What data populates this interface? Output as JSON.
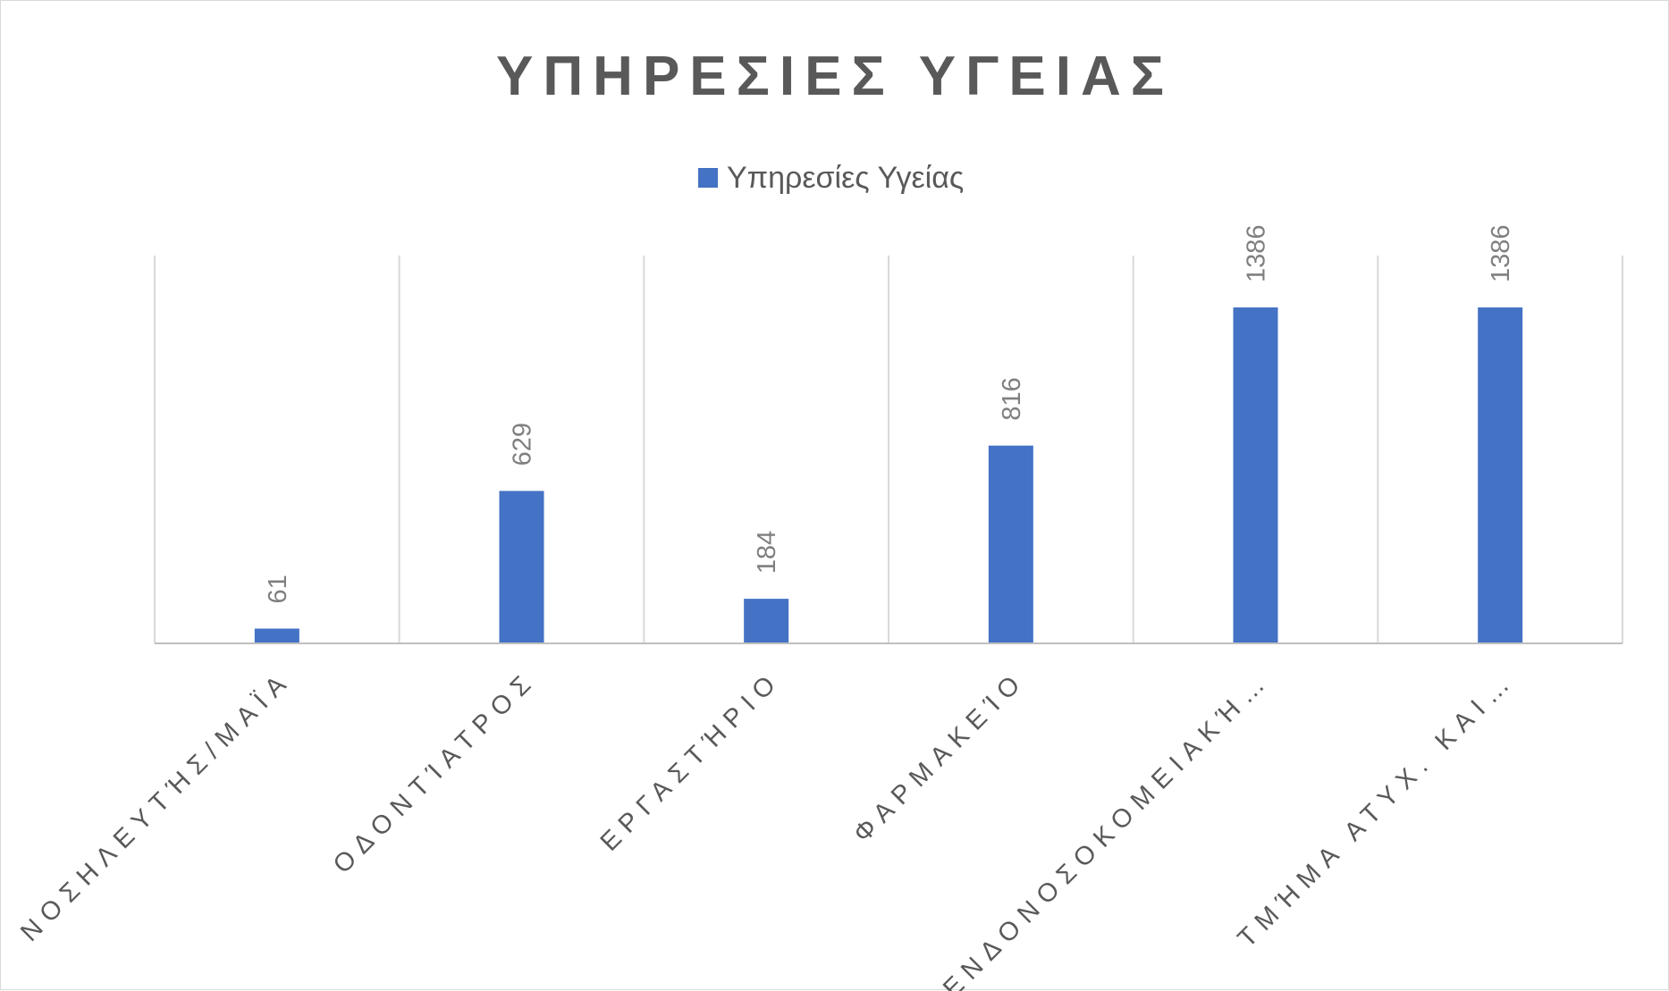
{
  "chart_data": {
    "type": "bar",
    "title": "ΥΠΗΡΕΣΙΕΣ ΥΓΕΙΑΣ",
    "categories": [
      "ΝΟΣΗΛΕΥΤΉΣ/ΜΑΪΑ",
      "ΟΔΟΝΤΊΑΤΡΟΣ",
      "ΕΡΓΑΣΤΉΡΙΟ",
      "ΦΑΡΜΑΚΕΊΟ",
      "ΕΝΔΟΝΟΣΟΚΟΜΕΙΑΚΉ…",
      "ΤΜΉΜΑ ΑΤΥΧ. ΚΑΙ…"
    ],
    "series": [
      {
        "name": "Υπηρεσίες Υγείας",
        "values": [
          61,
          629,
          184,
          816,
          1386,
          1386
        ],
        "color": "#4472c4"
      }
    ],
    "data_labels": [
      "61",
      "629",
      "184",
      "816",
      "1386",
      "1386"
    ],
    "xlabel": "",
    "ylabel": "",
    "ylim": [
      0,
      1600
    ],
    "legend_position": "top",
    "grid": "vertical category separators",
    "colors": {
      "bar": "#4472c4",
      "grid": "#d9d9d9",
      "axis": "#bfbfbf"
    }
  }
}
